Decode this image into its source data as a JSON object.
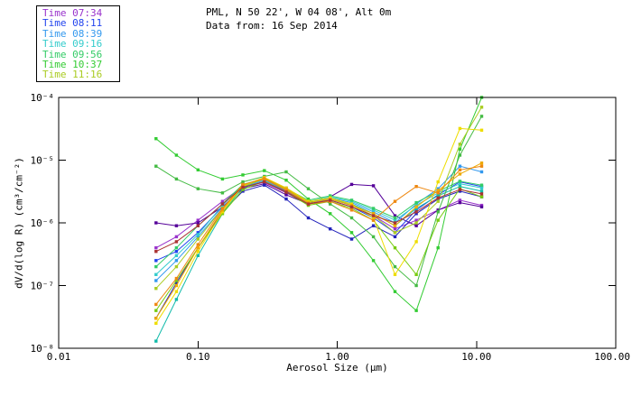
{
  "window": {
    "background": "#ffffff",
    "text_color": "#000000",
    "frame_color": "#000000"
  },
  "chart_data": {
    "type": "line",
    "title_line1": "PML, N 50 22', W 04 08', Alt 0m",
    "title_line2": "Data from: 16 Sep 2014",
    "xlabel": "Aerosol Size (μm)",
    "ylabel": "dV/d(log R) (cm³/cm⁻²)",
    "xscale": "log",
    "yscale": "log",
    "xlim": [
      0.01,
      100
    ],
    "ylim": [
      1e-08,
      0.0001
    ],
    "grid": false,
    "legend_position": "top-left",
    "marker": "filled-square",
    "x_ticks": [
      {
        "value": 0.01,
        "label": "0.01"
      },
      {
        "value": 0.1,
        "label": "0.10"
      },
      {
        "value": 1,
        "label": "1.00"
      },
      {
        "value": 10,
        "label": "10.00"
      },
      {
        "value": 100,
        "label": "100.00"
      }
    ],
    "y_ticks": [
      {
        "value": 0.0001,
        "label": "10⁻⁴"
      },
      {
        "value": 1e-05,
        "label": "10⁻⁵"
      },
      {
        "value": 1e-06,
        "label": "10⁻⁶"
      },
      {
        "value": 1e-07,
        "label": "10⁻⁷"
      },
      {
        "value": 1e-08,
        "label": "10⁻⁸"
      }
    ],
    "x": [
      0.05,
      0.07,
      0.1,
      0.15,
      0.21,
      0.3,
      0.43,
      0.62,
      0.89,
      1.27,
      1.82,
      2.6,
      3.7,
      5.3,
      7.6,
      10.9
    ],
    "series": [
      {
        "name": "Time 07:34",
        "color": "#9933CC",
        "values": [
          4e-07,
          6e-07,
          1.1e-06,
          2.2e-06,
          3.8e-06,
          4.4e-06,
          3e-06,
          2e-06,
          2.4e-06,
          1.9e-06,
          1.3e-06,
          8e-07,
          1.1e-06,
          1.6e-06,
          2.3e-06,
          1.9e-06
        ]
      },
      {
        "name": "",
        "color": "#550099",
        "values": [
          1e-06,
          9e-07,
          1e-06,
          1.8e-06,
          3.5e-06,
          4.2e-06,
          2.8e-06,
          2e-06,
          2.6e-06,
          4.1e-06,
          3.9e-06,
          1.3e-06,
          9e-07,
          1.6e-06,
          2.1e-06,
          1.8e-06
        ]
      },
      {
        "name": "",
        "color": "#2222BB",
        "values": [
          3e-08,
          1.1e-07,
          4e-07,
          1.5e-06,
          3.2e-06,
          4e-06,
          2.4e-06,
          1.2e-06,
          8e-07,
          5.5e-07,
          9e-07,
          6e-07,
          1.4e-06,
          2.4e-06,
          3.2e-06,
          2.6e-06
        ]
      },
      {
        "name": "Time 08:11",
        "color": "#2244EE",
        "values": [
          2.5e-07,
          3.5e-07,
          7e-07,
          1.8e-06,
          3.6e-06,
          4.6e-06,
          3.2e-06,
          2e-06,
          2.3e-06,
          1.8e-06,
          1.2e-06,
          7e-07,
          1.6e-06,
          2.8e-06,
          4.5e-06,
          3.8e-06
        ]
      },
      {
        "name": "Time 08:39",
        "color": "#3399EE",
        "values": [
          1.2e-07,
          2.5e-07,
          6e-07,
          1.7e-06,
          3.7e-06,
          4.8e-06,
          3.3e-06,
          2.1e-06,
          2.5e-06,
          2.1e-06,
          1.5e-06,
          1e-06,
          2e-06,
          3.5e-06,
          8e-06,
          6.5e-06
        ]
      },
      {
        "name": "Time 09:16",
        "color": "#33CCCC",
        "values": [
          1.5e-07,
          3e-07,
          6.5e-07,
          1.9e-06,
          4e-06,
          5.2e-06,
          3.6e-06,
          2.2e-06,
          2.6e-06,
          2.2e-06,
          1.6e-06,
          1.1e-06,
          1.9e-06,
          3e-06,
          4.2e-06,
          3.6e-06
        ]
      },
      {
        "name": "",
        "color": "#11BBAA",
        "values": [
          1.3e-08,
          6e-08,
          3e-07,
          1.4e-06,
          3.8e-06,
          5e-06,
          3.4e-06,
          2.1e-06,
          2.4e-06,
          2e-06,
          1.4e-06,
          9e-07,
          1.7e-06,
          2.7e-06,
          3.8e-06,
          3.2e-06
        ]
      },
      {
        "name": "Time 09:56",
        "color": "#33CC66",
        "values": [
          2e-07,
          4e-07,
          9e-07,
          2e-06,
          4.1e-06,
          5.1e-06,
          3.5e-06,
          2.3e-06,
          2.7e-06,
          2.3e-06,
          1.7e-06,
          1.2e-06,
          2.1e-06,
          3.2e-06,
          4.6e-06,
          4e-06
        ]
      },
      {
        "name": "Time 10:37",
        "color": "#33CC33",
        "values": [
          2.2e-05,
          1.2e-05,
          7e-06,
          5e-06,
          5.8e-06,
          6.8e-06,
          4.8e-06,
          2.4e-06,
          1.4e-06,
          7e-07,
          2.5e-07,
          8e-08,
          4e-08,
          4e-07,
          1.5e-05,
          0.0001
        ]
      },
      {
        "name": "",
        "color": "#44BB44",
        "values": [
          8e-06,
          5e-06,
          3.5e-06,
          3e-06,
          4.5e-06,
          5.5e-06,
          6.5e-06,
          3.5e-06,
          2e-06,
          1.2e-06,
          6e-07,
          2e-07,
          1e-07,
          1.5e-06,
          1.2e-05,
          5e-05
        ]
      },
      {
        "name": "",
        "color": "#77CC11",
        "values": [
          4e-08,
          1.2e-07,
          4e-07,
          1.4e-06,
          3.4e-06,
          4.6e-06,
          3.1e-06,
          1.9e-06,
          2.2e-06,
          1.7e-06,
          1.1e-06,
          4e-07,
          1.5e-07,
          1.1e-06,
          3.5e-06,
          2.6e-06
        ]
      },
      {
        "name": "Time 11:16",
        "color": "#AACC22",
        "values": [
          9e-08,
          2e-07,
          5.5e-07,
          1.7e-06,
          3.8e-06,
          5e-06,
          3.4e-06,
          2.1e-06,
          2.4e-06,
          1.9e-06,
          1.3e-06,
          7e-07,
          1e-06,
          2.2e-06,
          1.8e-05,
          7e-05
        ]
      },
      {
        "name": "",
        "color": "#EEDD00",
        "values": [
          2.5e-08,
          8e-08,
          3.5e-07,
          1.5e-06,
          3.9e-06,
          5.3e-06,
          3.6e-06,
          2.2e-06,
          2.5e-06,
          2e-06,
          1.2e-06,
          1.5e-07,
          5e-07,
          4.5e-06,
          3.2e-05,
          3e-05
        ]
      },
      {
        "name": "",
        "color": "#EEAA00",
        "values": [
          3e-08,
          1e-07,
          4e-07,
          1.6e-06,
          4e-06,
          5.2e-06,
          3.5e-06,
          2.1e-06,
          2.4e-06,
          1.9e-06,
          1.4e-06,
          9e-07,
          1.8e-06,
          3.3e-06,
          6e-06,
          9e-06
        ]
      },
      {
        "name": "",
        "color": "#EE8811",
        "values": [
          5e-08,
          1.3e-07,
          4.5e-07,
          1.7e-06,
          4.1e-06,
          5e-06,
          3.3e-06,
          2e-06,
          2.2e-06,
          1.6e-06,
          1.1e-06,
          2.2e-06,
          3.8e-06,
          3e-06,
          7e-06,
          8e-06
        ]
      },
      {
        "name": "",
        "color": "#AA3333",
        "values": [
          3.5e-07,
          5e-07,
          9e-07,
          2e-06,
          3.7e-06,
          4.5e-06,
          3.1e-06,
          2e-06,
          2.3e-06,
          1.8e-06,
          1.3e-06,
          1e-06,
          1.5e-06,
          2.5e-06,
          3.4e-06,
          2.9e-06
        ]
      }
    ]
  }
}
